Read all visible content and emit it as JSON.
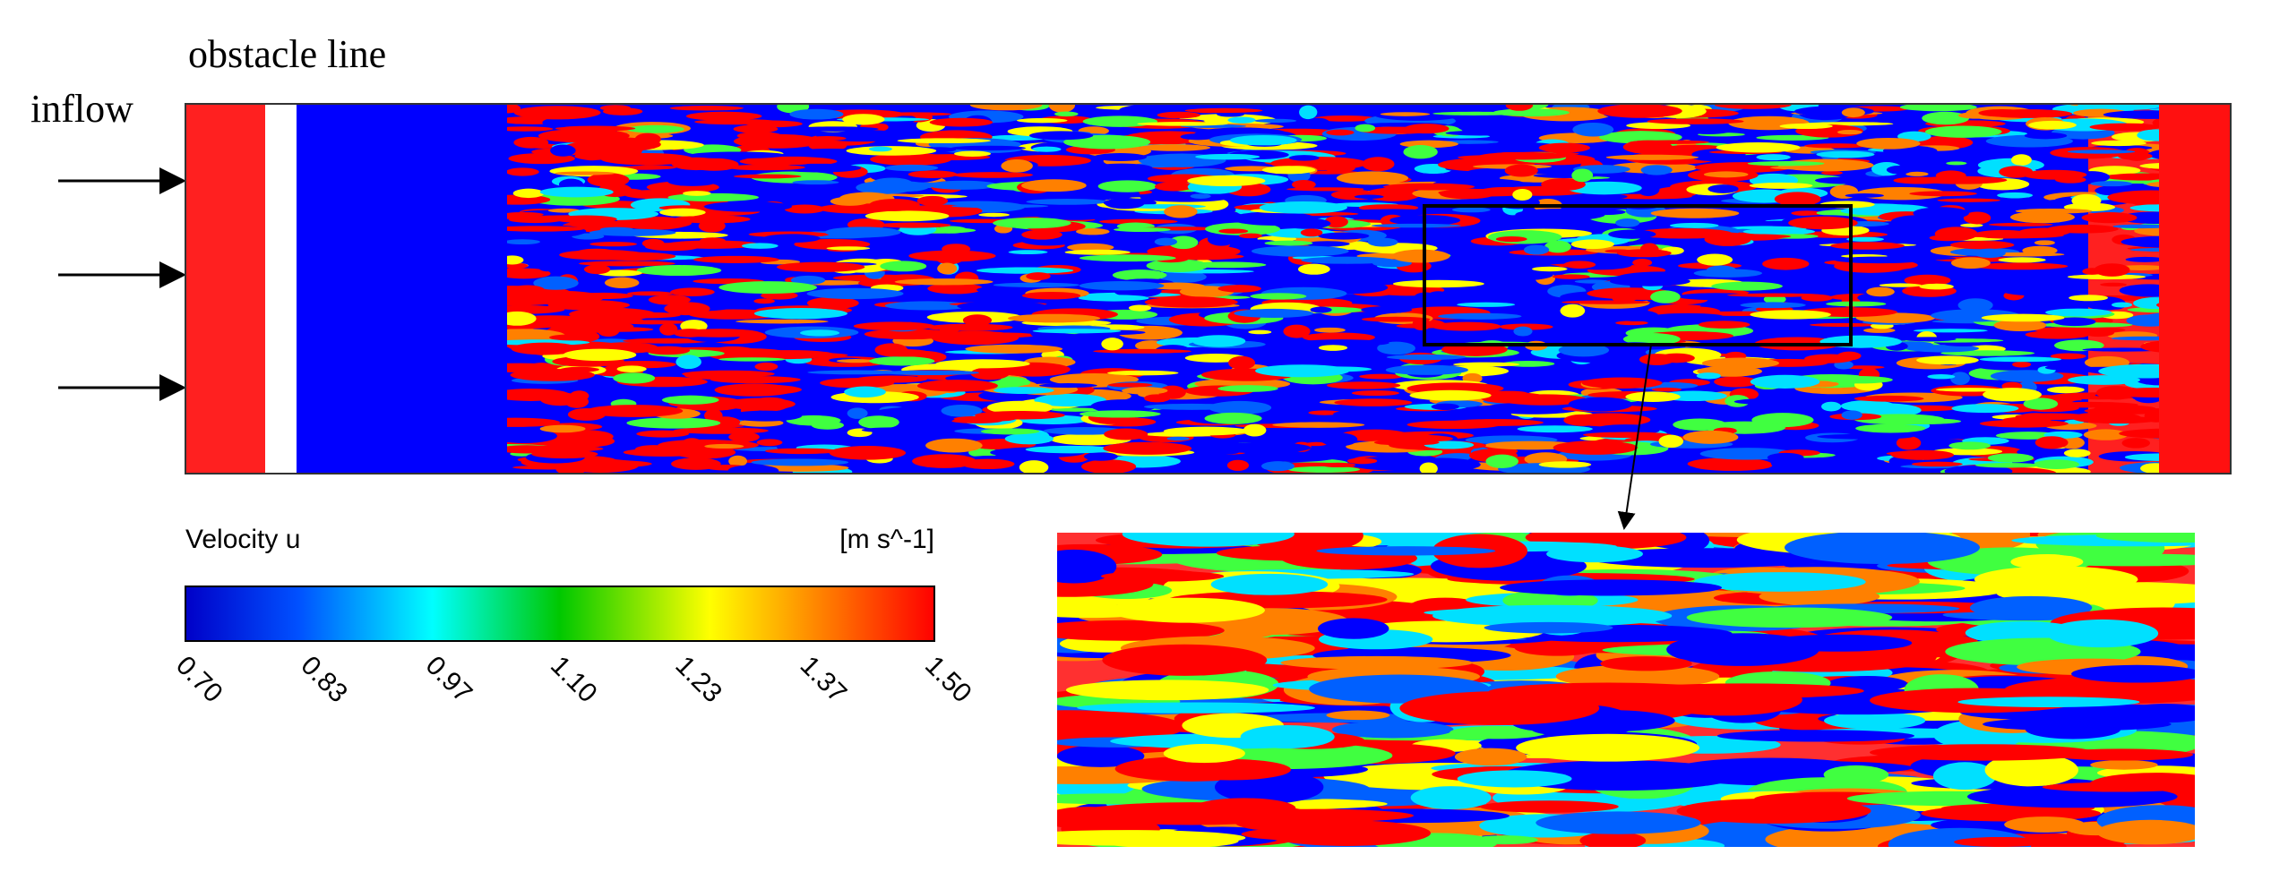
{
  "labels": {
    "obstacle": "obstacle line",
    "inflow": "inflow"
  },
  "colorbar": {
    "title": "Velocity u",
    "unit": "[m s^-1]",
    "ticks": [
      "0.70",
      "0.83",
      "0.97",
      "1.10",
      "1.23",
      "1.37",
      "1.50"
    ]
  }
}
